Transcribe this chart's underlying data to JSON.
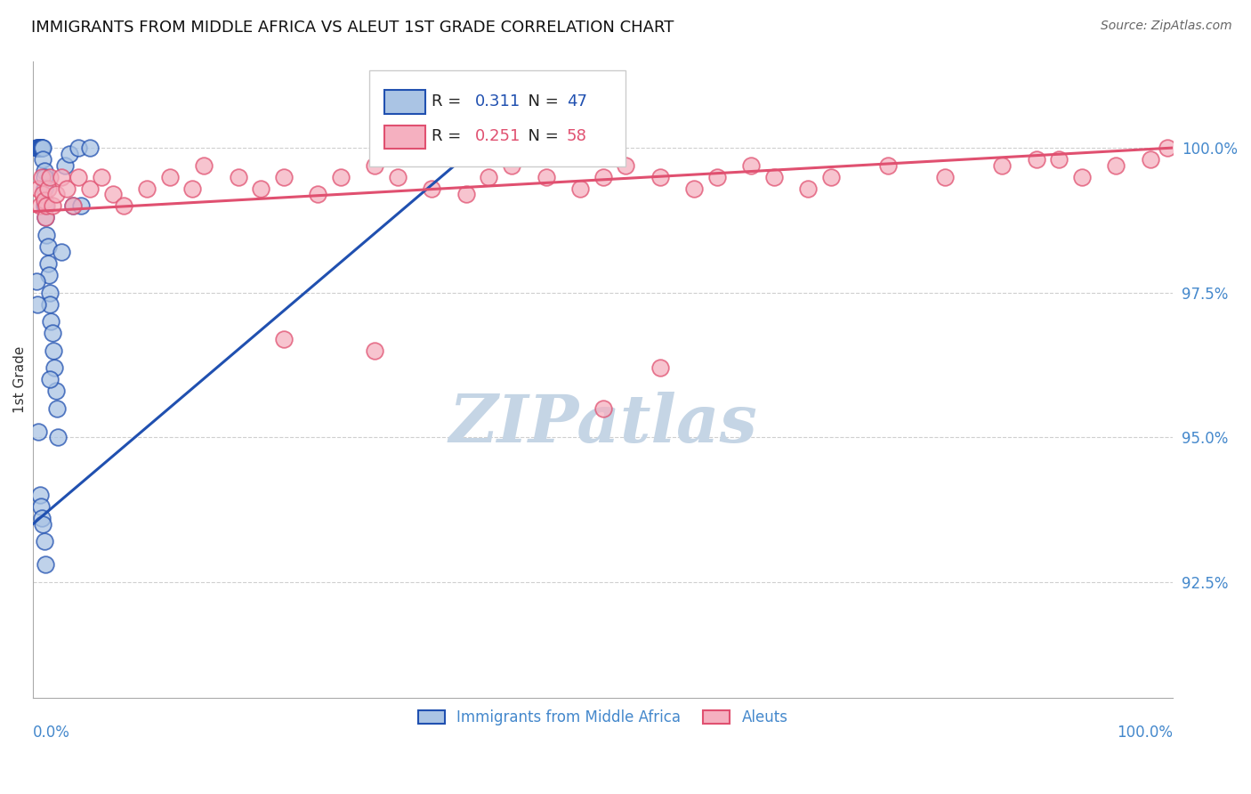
{
  "title": "IMMIGRANTS FROM MIDDLE AFRICA VS ALEUT 1ST GRADE CORRELATION CHART",
  "source": "Source: ZipAtlas.com",
  "ylabel": "1st Grade",
  "R_blue": "0.311",
  "N_blue": "47",
  "R_pink": "0.251",
  "N_pink": "58",
  "legend_label_blue": "Immigrants from Middle Africa",
  "legend_label_pink": "Aleuts",
  "xlim": [
    0.0,
    100.0
  ],
  "ylim": [
    90.5,
    101.5
  ],
  "yticks": [
    92.5,
    95.0,
    97.5,
    100.0
  ],
  "ytick_labels": [
    "92.5%",
    "95.0%",
    "97.5%",
    "100.0%"
  ],
  "color_blue": "#aac4e4",
  "color_pink": "#f5b0c0",
  "line_color_blue": "#2050b0",
  "line_color_pink": "#e05070",
  "blue_x": [
    0.3,
    0.4,
    0.5,
    0.5,
    0.6,
    0.6,
    0.7,
    0.8,
    0.8,
    0.9,
    0.9,
    1.0,
    1.0,
    1.0,
    1.0,
    1.1,
    1.1,
    1.2,
    1.3,
    1.3,
    1.4,
    1.5,
    1.5,
    1.6,
    1.7,
    1.8,
    1.9,
    2.0,
    2.1,
    2.2,
    2.5,
    2.8,
    3.2,
    3.5,
    4.0,
    4.2,
    5.0,
    0.3,
    0.4,
    0.5,
    0.6,
    0.7,
    0.8,
    0.9,
    1.0,
    1.1,
    1.5
  ],
  "blue_y": [
    100.0,
    100.0,
    100.0,
    100.0,
    100.0,
    100.0,
    100.0,
    100.0,
    100.0,
    100.0,
    99.8,
    99.6,
    99.5,
    99.3,
    99.0,
    99.0,
    98.8,
    98.5,
    98.3,
    98.0,
    97.8,
    97.5,
    97.3,
    97.0,
    96.8,
    96.5,
    96.2,
    95.8,
    95.5,
    95.0,
    98.2,
    99.7,
    99.9,
    99.0,
    100.0,
    99.0,
    100.0,
    97.7,
    97.3,
    95.1,
    94.0,
    93.8,
    93.6,
    93.5,
    93.2,
    92.8,
    96.0
  ],
  "pink_x": [
    0.5,
    0.6,
    0.8,
    0.9,
    1.0,
    1.1,
    1.2,
    1.3,
    1.5,
    1.7,
    2.0,
    2.5,
    3.0,
    3.5,
    4.0,
    5.0,
    6.0,
    7.0,
    8.0,
    10.0,
    12.0,
    14.0,
    15.0,
    18.0,
    20.0,
    22.0,
    25.0,
    27.0,
    30.0,
    32.0,
    35.0,
    38.0,
    40.0,
    42.0,
    45.0,
    48.0,
    50.0,
    52.0,
    55.0,
    58.0,
    60.0,
    63.0,
    65.0,
    68.0,
    70.0,
    75.0,
    80.0,
    85.0,
    88.0,
    90.0,
    92.0,
    95.0,
    98.0,
    99.5,
    22.0,
    30.0,
    50.0,
    55.0
  ],
  "pink_y": [
    99.3,
    99.0,
    99.5,
    99.2,
    99.1,
    98.8,
    99.0,
    99.3,
    99.5,
    99.0,
    99.2,
    99.5,
    99.3,
    99.0,
    99.5,
    99.3,
    99.5,
    99.2,
    99.0,
    99.3,
    99.5,
    99.3,
    99.7,
    99.5,
    99.3,
    99.5,
    99.2,
    99.5,
    99.7,
    99.5,
    99.3,
    99.2,
    99.5,
    99.7,
    99.5,
    99.3,
    99.5,
    99.7,
    99.5,
    99.3,
    99.5,
    99.7,
    99.5,
    99.3,
    99.5,
    99.7,
    99.5,
    99.7,
    99.8,
    99.8,
    99.5,
    99.7,
    99.8,
    100.0,
    96.7,
    96.5,
    95.5,
    96.2
  ],
  "watermark": "ZIPatlas",
  "watermark_color": "#c5d5e5",
  "background_color": "#ffffff",
  "title_fontsize": 13,
  "axis_label_color": "#4488cc",
  "grid_color": "#bbbbbb",
  "blue_trend_x0": 0.0,
  "blue_trend_x1": 40.0,
  "blue_trend_y0": 93.5,
  "blue_trend_y1": 100.2,
  "pink_trend_x0": 0.0,
  "pink_trend_x1": 100.0,
  "pink_trend_y0": 98.9,
  "pink_trend_y1": 100.0
}
